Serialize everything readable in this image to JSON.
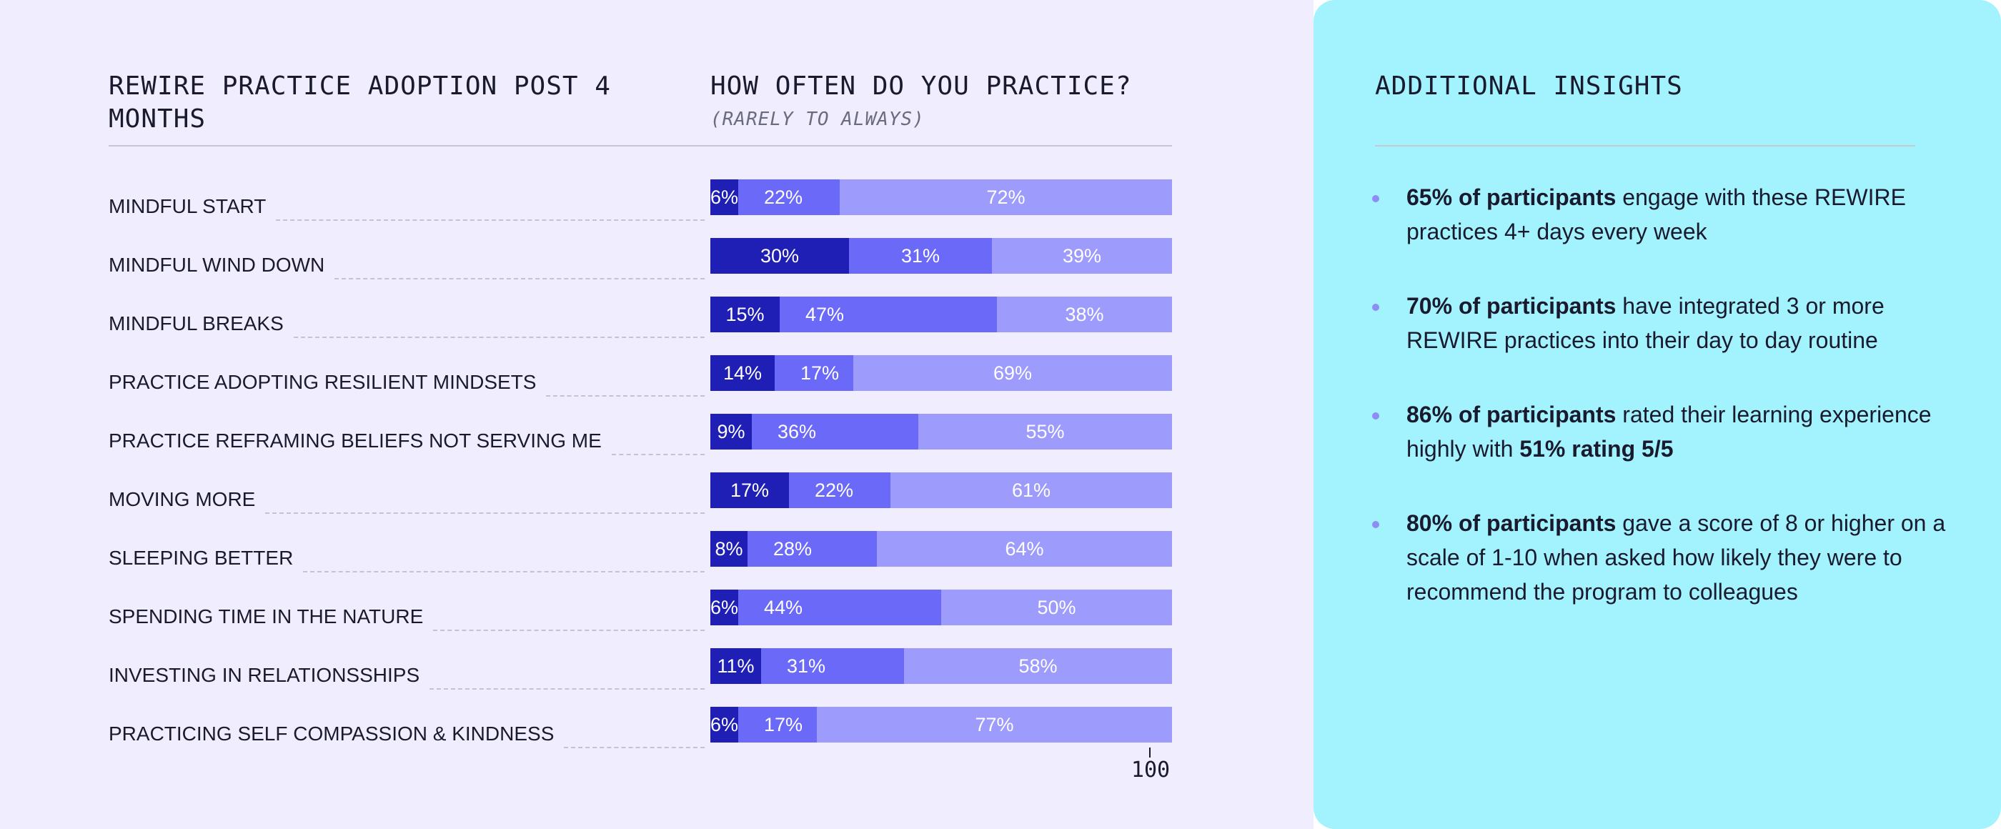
{
  "colors": {
    "left_background": "#f0eefe",
    "right_background": "#a3f3fe",
    "rarely": "#1f1fb5",
    "sometimes": "#6b69f7",
    "always": "#9d9bfb"
  },
  "chart": {
    "title": "REWIRE PRACTICE ADOPTION POST 4 MONTHS",
    "frequency_title": "HOW OFTEN DO YOU PRACTICE?",
    "frequency_subtitle": "(RARELY TO ALWAYS)",
    "axis_max_label": "100"
  },
  "chart_data": {
    "type": "bar",
    "orientation": "horizontal",
    "stacked": true,
    "title": "REWIRE PRACTICE ADOPTION POST 4 MONTHS",
    "xlim": [
      0,
      100
    ],
    "categories": [
      "MINDFUL START",
      "MINDFUL WIND DOWN",
      "MINDFUL BREAKS",
      "PRACTICE ADOPTING RESILIENT MINDSETS",
      "PRACTICE REFRAMING BELIEFS NOT SERVING ME",
      "MOVING MORE",
      "SLEEPING BETTER",
      "SPENDING TIME IN THE NATURE",
      "INVESTING IN RELATIONSSHIPS",
      "PRACTICING SELF COMPASSION & KINDNESS"
    ],
    "series": [
      {
        "values": [
          6,
          30,
          15,
          14,
          9,
          17,
          8,
          6,
          11,
          6
        ],
        "color": "#1f1fb5"
      },
      {
        "values": [
          22,
          31,
          47,
          17,
          36,
          22,
          28,
          44,
          31,
          17
        ],
        "color": "#6b69f7"
      },
      {
        "values": [
          72,
          39,
          38,
          69,
          55,
          61,
          64,
          50,
          58,
          77
        ],
        "color": "#9d9bfb"
      }
    ],
    "value_suffix": "%",
    "grid": false,
    "legend": "none"
  },
  "insights": {
    "title": "ADDITIONAL INSIGHTS",
    "items": [
      {
        "bold": "65% of participants",
        "text": " engage with these REWIRE practices 4+ days every week",
        "bold2": ""
      },
      {
        "bold": "70% of participants",
        "text": " have integrated 3 or more REWIRE practices into their day to day routine",
        "bold2": ""
      },
      {
        "bold": "86% of participants",
        "text": " rated their learning experience highly with ",
        "bold2": "51% rating 5/5"
      },
      {
        "bold": "80% of participants",
        "text": " gave a score of 8 or higher on a scale of 1-10 when asked how likely they were to recommend the program to colleagues",
        "bold2": ""
      }
    ]
  }
}
